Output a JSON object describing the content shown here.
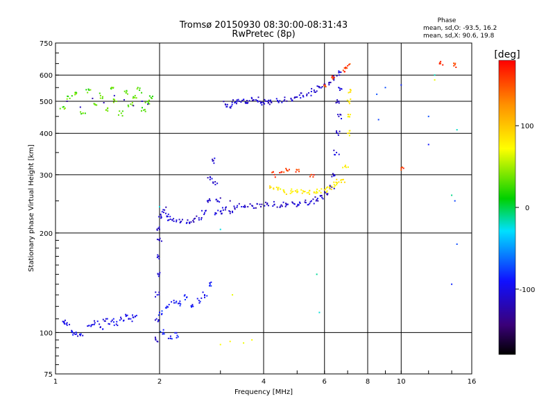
{
  "chart_data": {
    "type": "scatter",
    "title": "Tromsø 20150930 08:30:00-08:31:43",
    "subtitle": "RwPretec (8p)",
    "xlabel": "Frequency [MHz]",
    "ylabel": "Stationary phase Virtual Height [km]",
    "x_scale": "log",
    "y_scale": "log",
    "xlim": [
      1,
      16
    ],
    "ylim": [
      75,
      750
    ],
    "x_ticks": [
      1,
      2,
      4,
      6,
      8,
      10,
      16
    ],
    "y_ticks": [
      75,
      100,
      200,
      300,
      400,
      500,
      600,
      750
    ],
    "grid": true,
    "stats": {
      "title": "Phase",
      "line_o": "mean, sd,O: -93.5, 16.2",
      "line_x": "mean, sd,X:  90.6, 19.8"
    },
    "colorbar": {
      "label": "[deg]",
      "min": -180,
      "max": 180,
      "ticks": [
        100,
        0,
        -100
      ],
      "colormap": "rainbow: black-purple-blue-cyan-green-yellow-orange-red"
    },
    "traces": [
      {
        "phase": -100,
        "points": [
          [
            1.05,
            108
          ],
          [
            1.08,
            107
          ],
          [
            1.12,
            100
          ],
          [
            1.15,
            99
          ],
          [
            1.18,
            98
          ],
          [
            1.25,
            105
          ],
          [
            1.3,
            107
          ],
          [
            1.35,
            104
          ],
          [
            1.4,
            110
          ],
          [
            1.45,
            108
          ],
          [
            1.5,
            106
          ],
          [
            1.55,
            110
          ],
          [
            1.6,
            112
          ],
          [
            1.65,
            110
          ],
          [
            1.7,
            112
          ]
        ]
      },
      {
        "phase": 30,
        "points": [
          [
            1.05,
            480
          ],
          [
            1.1,
            510
          ],
          [
            1.15,
            530
          ],
          [
            1.2,
            460
          ],
          [
            1.25,
            540
          ],
          [
            1.3,
            490
          ],
          [
            1.35,
            520
          ],
          [
            1.4,
            470
          ],
          [
            1.45,
            545
          ],
          [
            1.5,
            500
          ],
          [
            1.55,
            460
          ],
          [
            1.6,
            530
          ],
          [
            1.65,
            490
          ],
          [
            1.7,
            520
          ],
          [
            1.75,
            540
          ],
          [
            1.8,
            470
          ],
          [
            1.85,
            500
          ],
          [
            1.9,
            510
          ]
        ]
      },
      {
        "phase": -120,
        "points": [
          [
            1.08,
            500
          ],
          [
            1.18,
            480
          ],
          [
            1.28,
            510
          ],
          [
            1.38,
            495
          ],
          [
            1.48,
            520
          ],
          [
            1.58,
            505
          ],
          [
            1.68,
            485
          ],
          [
            1.78,
            500
          ],
          [
            1.85,
            490
          ]
        ]
      },
      {
        "phase": -110,
        "points": [
          [
            1.95,
            95
          ],
          [
            1.96,
            110
          ],
          [
            1.97,
            130
          ],
          [
            1.98,
            150
          ],
          [
            1.99,
            170
          ],
          [
            2.0,
            190
          ],
          [
            2.0,
            205
          ],
          [
            2.02,
            225
          ],
          [
            2.05,
            235
          ],
          [
            2.1,
            225
          ],
          [
            2.15,
            220
          ],
          [
            2.2,
            217
          ],
          [
            2.3,
            216
          ],
          [
            2.4,
            215
          ],
          [
            2.5,
            218
          ],
          [
            2.6,
            222
          ],
          [
            2.7,
            230
          ],
          [
            2.75,
            250
          ],
          [
            2.8,
            290
          ],
          [
            2.85,
            330
          ],
          [
            2.9,
            280
          ],
          [
            2.95,
            250
          ]
        ]
      },
      {
        "phase": -90,
        "points": [
          [
            2.0,
            115
          ],
          [
            2.1,
            120
          ],
          [
            2.2,
            125
          ],
          [
            2.3,
            122
          ],
          [
            2.4,
            128
          ],
          [
            2.5,
            120
          ],
          [
            2.6,
            125
          ],
          [
            2.7,
            130
          ],
          [
            2.8,
            140
          ],
          [
            2.05,
            100
          ],
          [
            2.15,
            96
          ],
          [
            2.25,
            98
          ]
        ]
      },
      {
        "phase": -110,
        "points": [
          [
            3.1,
            490
          ],
          [
            3.2,
            480
          ],
          [
            3.3,
            495
          ],
          [
            3.4,
            500
          ],
          [
            3.5,
            505
          ],
          [
            3.6,
            495
          ],
          [
            3.7,
            510
          ],
          [
            3.8,
            505
          ],
          [
            3.9,
            500
          ],
          [
            4.0,
            495
          ],
          [
            4.1,
            500
          ],
          [
            4.2,
            498
          ],
          [
            4.4,
            500
          ],
          [
            4.6,
            505
          ],
          [
            4.8,
            510
          ],
          [
            5.0,
            515
          ],
          [
            5.2,
            520
          ],
          [
            5.4,
            530
          ],
          [
            5.6,
            540
          ],
          [
            5.8,
            550
          ],
          [
            6.0,
            560
          ],
          [
            6.2,
            570
          ],
          [
            6.4,
            590
          ],
          [
            6.6,
            610
          ]
        ]
      },
      {
        "phase": -110,
        "points": [
          [
            2.9,
            230
          ],
          [
            3.0,
            232
          ],
          [
            3.1,
            235
          ],
          [
            3.2,
            232
          ],
          [
            3.3,
            238
          ],
          [
            3.5,
            240
          ],
          [
            3.7,
            242
          ],
          [
            3.9,
            244
          ],
          [
            4.1,
            246
          ],
          [
            4.3,
            244
          ],
          [
            4.5,
            243
          ],
          [
            4.7,
            244
          ],
          [
            4.9,
            245
          ],
          [
            5.1,
            246
          ],
          [
            5.3,
            247
          ],
          [
            5.5,
            250
          ],
          [
            5.7,
            252
          ],
          [
            5.9,
            256
          ],
          [
            6.1,
            262
          ],
          [
            6.3,
            275
          ],
          [
            6.4,
            300
          ],
          [
            6.5,
            350
          ],
          [
            6.55,
            400
          ],
          [
            6.6,
            450
          ],
          [
            6.6,
            500
          ],
          [
            6.65,
            540
          ]
        ]
      },
      {
        "phase": -125,
        "points": [
          [
            3.0,
            255
          ],
          [
            3.2,
            250
          ],
          [
            3.4,
            245
          ],
          [
            3.6,
            240
          ],
          [
            3.8,
            238
          ]
        ]
      },
      {
        "phase": 80,
        "points": [
          [
            4.2,
            275
          ],
          [
            4.4,
            270
          ],
          [
            4.6,
            265
          ],
          [
            4.8,
            268
          ],
          [
            5.0,
            270
          ],
          [
            5.2,
            268
          ],
          [
            5.4,
            265
          ],
          [
            5.6,
            266
          ],
          [
            5.8,
            268
          ],
          [
            6.0,
            270
          ],
          [
            6.2,
            275
          ],
          [
            6.4,
            280
          ],
          [
            6.6,
            285
          ],
          [
            6.8,
            290
          ],
          [
            6.9,
            320
          ],
          [
            7.0,
            400
          ],
          [
            7.05,
            450
          ],
          [
            7.1,
            500
          ],
          [
            7.15,
            540
          ]
        ]
      },
      {
        "phase": 160,
        "points": [
          [
            4.3,
            300
          ],
          [
            4.5,
            305
          ],
          [
            4.7,
            308
          ],
          [
            5.0,
            310
          ],
          [
            5.5,
            300
          ],
          [
            6.0,
            560
          ],
          [
            6.3,
            590
          ],
          [
            6.8,
            620
          ],
          [
            7.0,
            640
          ],
          [
            10.0,
            310
          ],
          [
            13.0,
            650
          ],
          [
            14.2,
            640
          ]
        ]
      },
      {
        "phase": 70,
        "points": [
          [
            3.0,
            92
          ],
          [
            3.2,
            94
          ],
          [
            3.5,
            93
          ],
          [
            3.7,
            95
          ],
          [
            3.25,
            130
          ],
          [
            12.5,
            580
          ]
        ]
      },
      {
        "phase": -20,
        "points": [
          [
            2.0,
            240
          ],
          [
            3.0,
            205
          ],
          [
            5.7,
            150
          ],
          [
            5.8,
            115
          ],
          [
            12.5,
            600
          ],
          [
            14.0,
            260
          ],
          [
            14.5,
            410
          ]
        ]
      },
      {
        "phase": -80,
        "points": [
          [
            8.5,
            525
          ],
          [
            8.6,
            440
          ],
          [
            9.0,
            550
          ],
          [
            10.0,
            560
          ],
          [
            12.0,
            370
          ],
          [
            12.0,
            450
          ],
          [
            14.0,
            140
          ],
          [
            14.5,
            185
          ],
          [
            14.3,
            250
          ]
        ]
      }
    ]
  }
}
